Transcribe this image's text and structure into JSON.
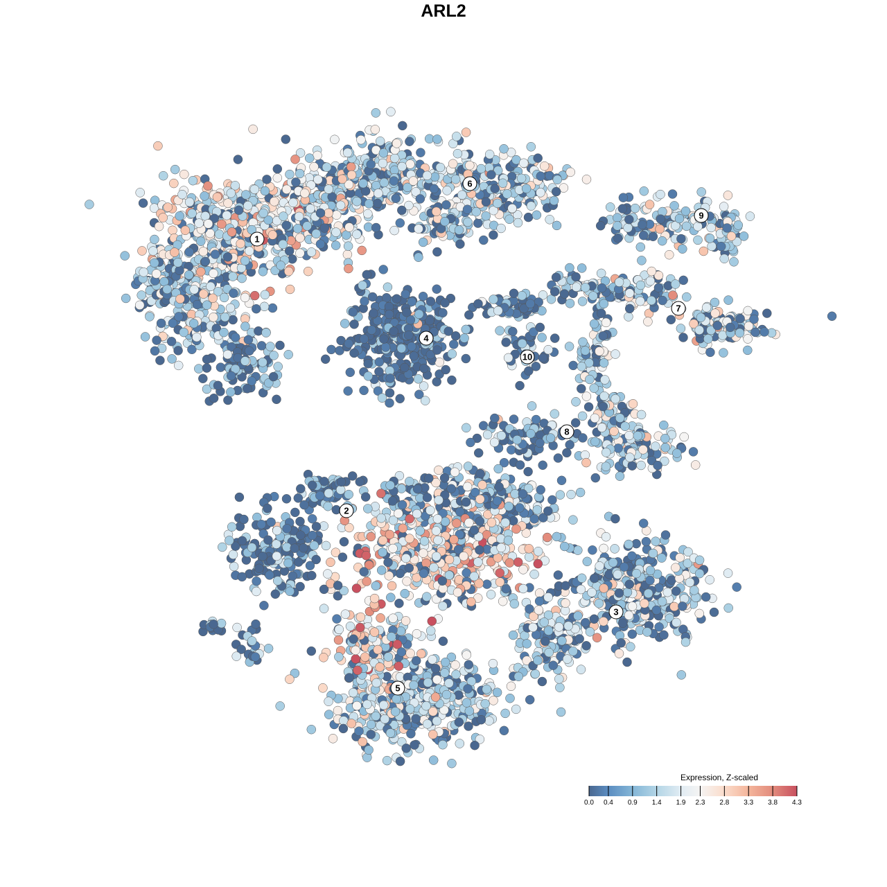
{
  "chart_data": {
    "type": "scatter",
    "title": "ARL2",
    "xlabel": "",
    "ylabel": "",
    "grid": false,
    "axes_visible": false,
    "clusters": [
      {
        "label": "1",
        "expression": "mixed, mostly low-to-mid with many high cells"
      },
      {
        "label": "2",
        "expression": "low"
      },
      {
        "label": "3",
        "expression": "low-to-mid"
      },
      {
        "label": "4",
        "expression": "low"
      },
      {
        "label": "5",
        "expression": "mixed, many high cells"
      },
      {
        "label": "6",
        "expression": "mid"
      },
      {
        "label": "7",
        "expression": "mid"
      },
      {
        "label": "8",
        "expression": "low-to-mid"
      },
      {
        "label": "9",
        "expression": "mid"
      },
      {
        "label": "10",
        "expression": "low"
      }
    ],
    "colorbar": {
      "title": "Expression, Z-scaled",
      "range": [
        0.0,
        4.3
      ],
      "ticks": [
        "0.0",
        "0.4",
        "0.9",
        "1.4",
        "1.9",
        "2.3",
        "2.8",
        "3.3",
        "3.8",
        "4.3"
      ],
      "colors": [
        "#4a6890",
        "#5b8dc1",
        "#84b6d7",
        "#b3d5e6",
        "#e1ecf3",
        "#f5f4f3",
        "#fbdccb",
        "#f4b59b",
        "#e28b7c",
        "#c8505f"
      ]
    },
    "legend_placement": "bottom-right"
  }
}
